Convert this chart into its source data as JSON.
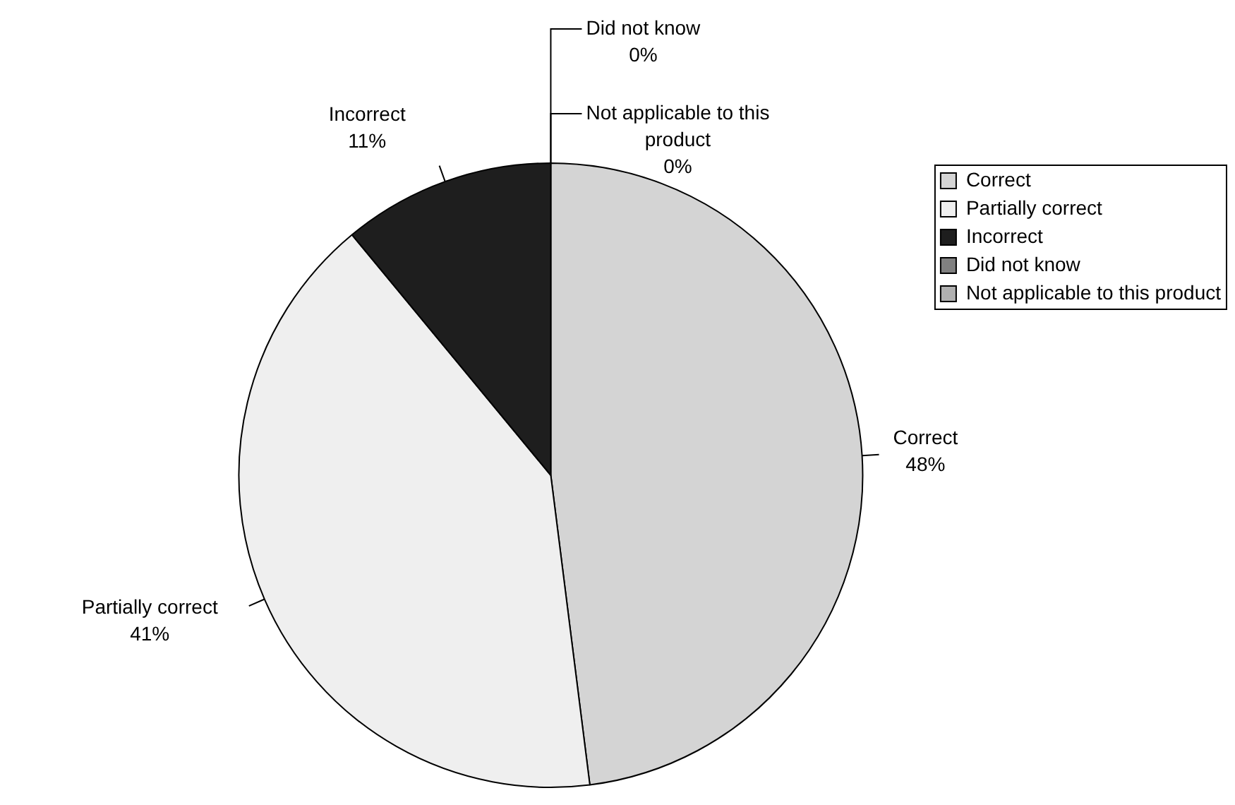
{
  "chart_data": {
    "type": "pie",
    "categories": [
      "Correct",
      "Partially correct",
      "Incorrect",
      "Did not know",
      "Not applicable to this product"
    ],
    "values": [
      48,
      41,
      11,
      0,
      0
    ],
    "value_labels": [
      "48%",
      "41%",
      "11%",
      "0%",
      "0%"
    ],
    "colors": [
      "#d4d4d4",
      "#efefef",
      "#1e1e1e",
      "#808080",
      "#b0b0b0"
    ],
    "legend": "right"
  }
}
